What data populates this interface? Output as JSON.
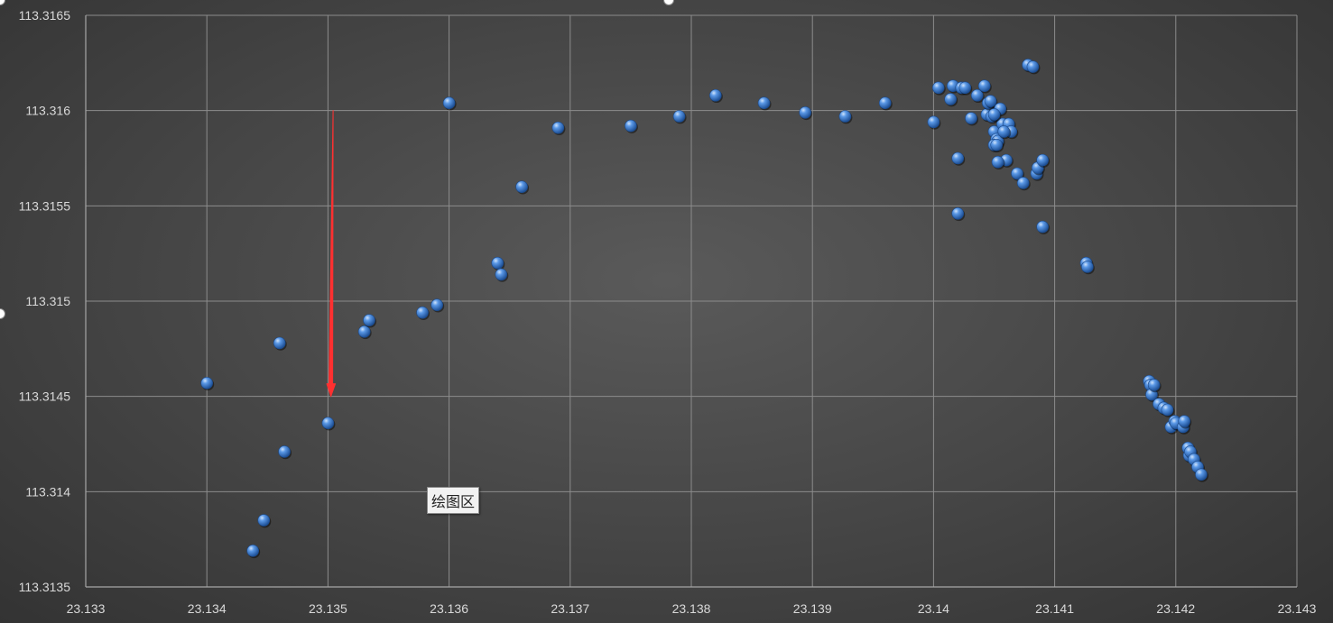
{
  "chart_data": {
    "type": "scatter",
    "title": "",
    "xlabel": "",
    "ylabel": "",
    "xlim": [
      23.133,
      23.143
    ],
    "ylim": [
      113.3135,
      113.3165
    ],
    "x_ticks": [
      "23.133",
      "23.134",
      "23.135",
      "23.136",
      "23.137",
      "23.138",
      "23.139",
      "23.14",
      "23.141",
      "23.142",
      "23.143"
    ],
    "y_ticks": [
      "113.3135",
      "113.314",
      "113.3145",
      "113.315",
      "113.3155",
      "113.316",
      "113.3165"
    ],
    "grid": true,
    "legend": "none",
    "series": [
      {
        "x": [
          23.134,
          23.13438,
          23.13447,
          23.1346,
          23.13464,
          23.135,
          23.1353,
          23.13534,
          23.13578,
          23.1359,
          23.1364,
          23.13643,
          23.1366,
          23.1369,
          23.1375,
          23.1379,
          23.1382,
          23.1386,
          23.13894,
          23.13927,
          23.136,
          23.1396,
          23.14,
          23.14004,
          23.14014,
          23.14016,
          23.1402,
          23.1402,
          23.14023,
          23.14026,
          23.14031,
          23.14036,
          23.14042,
          23.14044,
          23.14045,
          23.14047,
          23.14048,
          23.1405,
          23.14052,
          23.14053,
          23.14055,
          23.14057,
          23.1406,
          23.14062,
          23.14064,
          23.1405,
          23.14052,
          23.1405,
          23.14053,
          23.14058,
          23.14069,
          23.14074,
          23.14078,
          23.14082,
          23.14085,
          23.14086,
          23.1409,
          23.1409,
          23.14126,
          23.14127,
          23.14178,
          23.14179,
          23.1418,
          23.14182,
          23.14186,
          23.1419,
          23.14193,
          23.14196,
          23.14199,
          23.142,
          23.14206,
          23.14207,
          23.1421,
          23.14211,
          23.14212,
          23.14215,
          23.14218,
          23.14221
        ],
        "y": [
          113.31457,
          113.31369,
          113.31385,
          113.31478,
          113.31421,
          113.31436,
          113.31484,
          113.3149,
          113.31494,
          113.31498,
          113.3152,
          113.31514,
          113.3156,
          113.31591,
          113.31592,
          113.31597,
          113.31608,
          113.31604,
          113.31599,
          113.31597,
          113.31604,
          113.31604,
          113.31594,
          113.31612,
          113.31606,
          113.31613,
          113.31575,
          113.31546,
          113.31612,
          113.31612,
          113.31596,
          113.31608,
          113.31613,
          113.31598,
          113.31604,
          113.31605,
          113.31597,
          113.31589,
          113.31585,
          113.31584,
          113.31601,
          113.31593,
          113.31574,
          113.31593,
          113.31589,
          113.31582,
          113.31582,
          113.31598,
          113.31573,
          113.31589,
          113.31567,
          113.31562,
          113.31624,
          113.31623,
          113.31567,
          113.3157,
          113.31574,
          113.31539,
          113.3152,
          113.31518,
          113.31458,
          113.31456,
          113.31451,
          113.31456,
          113.31446,
          113.31444,
          113.31443,
          113.31434,
          113.31437,
          113.31436,
          113.31434,
          113.31437,
          113.31423,
          113.31419,
          113.31421,
          113.31417,
          113.31413,
          113.31409
        ]
      }
    ],
    "annotation_label": "绘图区"
  },
  "colors": {
    "marker": "#3f7fd4",
    "marker_highlight": "#aecdf5",
    "marker_edge": "#1c4a8a",
    "arrow": "#ff3030",
    "grid": "#8c8c8c",
    "axis": "#a6a6a6"
  }
}
